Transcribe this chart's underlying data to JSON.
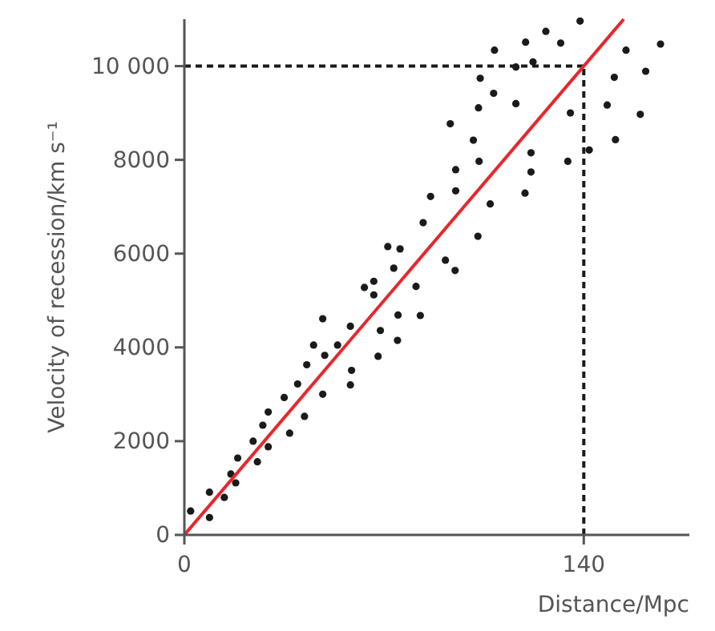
{
  "chart_data": {
    "type": "scatter",
    "xlabel": "Distance/Mpc",
    "ylabel": "Velocity of recession/km s⁻¹",
    "xlim": [
      0,
      177
    ],
    "ylim": [
      0,
      11000
    ],
    "xticks": [
      0,
      140
    ],
    "yticks": [
      0,
      2000,
      4000,
      6000,
      8000,
      {
        "value": 10000,
        "label": "10 000"
      }
    ],
    "grid": false,
    "ref_lines": [
      {
        "axis": "x",
        "value": 140,
        "color": "#1a1a1a",
        "line_style": "dashed"
      },
      {
        "axis": "y",
        "value": 10000,
        "color": "#1a1a1a",
        "line_style": "dashed"
      }
    ],
    "series": [
      {
        "color": "#1a1a1a",
        "marker": "circle",
        "x": [
          2.2,
          8.8,
          8.8,
          14,
          16.3,
          18,
          18.7,
          25.6,
          24.1,
          27.5,
          29.4,
          29.4,
          35,
          36.9,
          39.7,
          42.1,
          42.9,
          45.3,
          48.5,
          48.5,
          49.2,
          53.7,
          58.2,
          58.6,
          58.2,
          63.1,
          66.4,
          66.4,
          68.7,
          67.9,
          71.3,
          73.4,
          75.6,
          74.9,
          74.7,
          81.2,
          82.7,
          83.7,
          86.3,
          91.5,
          93.2,
          94.9,
          95.1,
          95.1,
          101.3,
          102.9,
          103.1,
          103.3,
          103.7,
          107.2,
          108.4,
          108.7,
          116.2,
          116.2,
          119.6,
          119.4,
          121.5,
          121.5,
          122.2,
          126.7,
          131.9,
          134.4,
          135.3,
          138.7,
          141.9,
          148.2,
          150.7,
          151.1,
          154.8,
          159.8,
          161.7,
          166.9
        ],
        "values": [
          510,
          370,
          910,
          800,
          1300,
          1110,
          1640,
          1560,
          2000,
          2340,
          1880,
          2620,
          2930,
          2170,
          3220,
          2530,
          3630,
          4050,
          4610,
          3000,
          3830,
          4050,
          4450,
          3510,
          3200,
          5280,
          5410,
          5120,
          4360,
          3810,
          6150,
          5690,
          6100,
          4690,
          4150,
          5300,
          4680,
          6660,
          7220,
          5860,
          8770,
          5640,
          7790,
          7340,
          8420,
          6370,
          9110,
          7970,
          9740,
          7060,
          9420,
          10340,
          9200,
          9980,
          10510,
          7290,
          8150,
          7740,
          10090,
          10740,
          10490,
          7970,
          9000,
          10960,
          8210,
          9170,
          9760,
          8430,
          10340,
          8970,
          9890,
          10470
        ]
      },
      {
        "type": "line",
        "color": "#e8262b",
        "line_style": "solid",
        "marker": "none",
        "x": [
          0,
          154
        ],
        "values": [
          0,
          11000
        ]
      }
    ]
  }
}
